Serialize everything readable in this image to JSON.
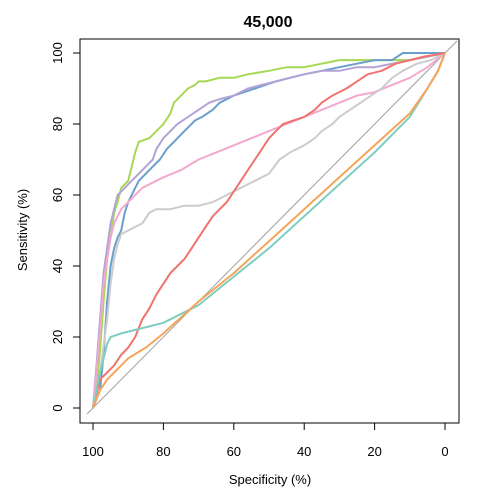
{
  "chart_data": {
    "type": "line",
    "title": "45,000",
    "xlabel": "Specificity (%)",
    "ylabel": "Sensitivity (%)",
    "xlim": [
      100,
      0
    ],
    "ylim": [
      0,
      100
    ],
    "x_reversed": true,
    "xticks": [
      100,
      80,
      60,
      40,
      20,
      0
    ],
    "yticks": [
      0,
      20,
      40,
      60,
      80,
      100
    ],
    "grid": false,
    "legend": "none",
    "diagonal_color": "#a0a0a0",
    "series": [
      {
        "color": "#a6d854",
        "points": [
          [
            100,
            0
          ],
          [
            99,
            6
          ],
          [
            98,
            16
          ],
          [
            97,
            30
          ],
          [
            96,
            42
          ],
          [
            95,
            48
          ],
          [
            94,
            55
          ],
          [
            93,
            58
          ],
          [
            92,
            62
          ],
          [
            90,
            64
          ],
          [
            89,
            68
          ],
          [
            88,
            72
          ],
          [
            87,
            75
          ],
          [
            84,
            76
          ],
          [
            82,
            78
          ],
          [
            80,
            80
          ],
          [
            78,
            83
          ],
          [
            77,
            86
          ],
          [
            75,
            88
          ],
          [
            73,
            90
          ],
          [
            71,
            91
          ],
          [
            70,
            92
          ],
          [
            68,
            92
          ],
          [
            64,
            93
          ],
          [
            60,
            93
          ],
          [
            56,
            94
          ],
          [
            50,
            95
          ],
          [
            45,
            96
          ],
          [
            40,
            96
          ],
          [
            30,
            98
          ],
          [
            20,
            98
          ],
          [
            10,
            98
          ],
          [
            5,
            99
          ],
          [
            0,
            100
          ]
        ]
      },
      {
        "color": "#6a9fcb",
        "points": [
          [
            100,
            0
          ],
          [
            98,
            5
          ],
          [
            97,
            15
          ],
          [
            96,
            30
          ],
          [
            95,
            40
          ],
          [
            94,
            45
          ],
          [
            93,
            48
          ],
          [
            92,
            50
          ],
          [
            91,
            55
          ],
          [
            90,
            58
          ],
          [
            88,
            62
          ],
          [
            87,
            64
          ],
          [
            85,
            66
          ],
          [
            83,
            68
          ],
          [
            81,
            70
          ],
          [
            79,
            73
          ],
          [
            77,
            75
          ],
          [
            75,
            77
          ],
          [
            73,
            79
          ],
          [
            71,
            81
          ],
          [
            69,
            82
          ],
          [
            66,
            84
          ],
          [
            64,
            86
          ],
          [
            60,
            88
          ],
          [
            57,
            89
          ],
          [
            54,
            90
          ],
          [
            51,
            91
          ],
          [
            48,
            92
          ],
          [
            44,
            93
          ],
          [
            40,
            94
          ],
          [
            35,
            95
          ],
          [
            30,
            96
          ],
          [
            25,
            97
          ],
          [
            20,
            98
          ],
          [
            15,
            98
          ],
          [
            12,
            100
          ],
          [
            0,
            100
          ]
        ]
      },
      {
        "color": "#b3a2d6",
        "points": [
          [
            100,
            0
          ],
          [
            99,
            12
          ],
          [
            98,
            25
          ],
          [
            97,
            38
          ],
          [
            96,
            45
          ],
          [
            95,
            52
          ],
          [
            94,
            56
          ],
          [
            93,
            60
          ],
          [
            91,
            62
          ],
          [
            89,
            64
          ],
          [
            87,
            66
          ],
          [
            85,
            68
          ],
          [
            83,
            70
          ],
          [
            82,
            73
          ],
          [
            80,
            76
          ],
          [
            78,
            78
          ],
          [
            76,
            80
          ],
          [
            73,
            82
          ],
          [
            70,
            84
          ],
          [
            67,
            86
          ],
          [
            64,
            87
          ],
          [
            60,
            88
          ],
          [
            56,
            90
          ],
          [
            52,
            91
          ],
          [
            48,
            92
          ],
          [
            44,
            93
          ],
          [
            40,
            94
          ],
          [
            35,
            95
          ],
          [
            30,
            95
          ],
          [
            25,
            96
          ],
          [
            20,
            96
          ],
          [
            15,
            97
          ],
          [
            10,
            98
          ],
          [
            5,
            99
          ],
          [
            0,
            100
          ]
        ]
      },
      {
        "color": "#f4a8cf",
        "points": [
          [
            100,
            0
          ],
          [
            99,
            10
          ],
          [
            98,
            22
          ],
          [
            97,
            35
          ],
          [
            96,
            42
          ],
          [
            95,
            48
          ],
          [
            94,
            52
          ],
          [
            92,
            56
          ],
          [
            90,
            58
          ],
          [
            88,
            60
          ],
          [
            86,
            62
          ],
          [
            84,
            63
          ],
          [
            80,
            65
          ],
          [
            75,
            67
          ],
          [
            70,
            70
          ],
          [
            65,
            72
          ],
          [
            60,
            74
          ],
          [
            55,
            76
          ],
          [
            50,
            78
          ],
          [
            45,
            80
          ],
          [
            40,
            82
          ],
          [
            35,
            84
          ],
          [
            30,
            86
          ],
          [
            25,
            88
          ],
          [
            20,
            89
          ],
          [
            15,
            91
          ],
          [
            10,
            93
          ],
          [
            5,
            96
          ],
          [
            0,
            100
          ]
        ]
      },
      {
        "color": "#cccccc",
        "points": [
          [
            100,
            0
          ],
          [
            98,
            10
          ],
          [
            96,
            25
          ],
          [
            95,
            35
          ],
          [
            94,
            42
          ],
          [
            93,
            46
          ],
          [
            92,
            49
          ],
          [
            90,
            50
          ],
          [
            88,
            51
          ],
          [
            86,
            52
          ],
          [
            84,
            55
          ],
          [
            82,
            56
          ],
          [
            78,
            56
          ],
          [
            74,
            57
          ],
          [
            70,
            57
          ],
          [
            66,
            58
          ],
          [
            62,
            60
          ],
          [
            58,
            62
          ],
          [
            54,
            64
          ],
          [
            50,
            66
          ],
          [
            47,
            70
          ],
          [
            44,
            72
          ],
          [
            40,
            74
          ],
          [
            37,
            76
          ],
          [
            35,
            78
          ],
          [
            32,
            80
          ],
          [
            30,
            82
          ],
          [
            27,
            84
          ],
          [
            24,
            86
          ],
          [
            21,
            88
          ],
          [
            18,
            90
          ],
          [
            15,
            93
          ],
          [
            12,
            95
          ],
          [
            8,
            97
          ],
          [
            4,
            98
          ],
          [
            0,
            100
          ]
        ]
      },
      {
        "color": "#f0736e",
        "points": [
          [
            100,
            0
          ],
          [
            99,
            4
          ],
          [
            98,
            8
          ],
          [
            96,
            10
          ],
          [
            94,
            12
          ],
          [
            92,
            15
          ],
          [
            90,
            17
          ],
          [
            88,
            20
          ],
          [
            86,
            25
          ],
          [
            84,
            28
          ],
          [
            82,
            32
          ],
          [
            80,
            35
          ],
          [
            78,
            38
          ],
          [
            76,
            40
          ],
          [
            74,
            42
          ],
          [
            72,
            45
          ],
          [
            70,
            48
          ],
          [
            68,
            51
          ],
          [
            66,
            54
          ],
          [
            64,
            56
          ],
          [
            62,
            58
          ],
          [
            60,
            61
          ],
          [
            58,
            64
          ],
          [
            56,
            67
          ],
          [
            54,
            70
          ],
          [
            52,
            73
          ],
          [
            50,
            76
          ],
          [
            48,
            78
          ],
          [
            46,
            80
          ],
          [
            43,
            81
          ],
          [
            40,
            82
          ],
          [
            37,
            84
          ],
          [
            35,
            86
          ],
          [
            32,
            88
          ],
          [
            28,
            90
          ],
          [
            25,
            92
          ],
          [
            22,
            94
          ],
          [
            18,
            95
          ],
          [
            14,
            97
          ],
          [
            10,
            98
          ],
          [
            6,
            99
          ],
          [
            0,
            100
          ]
        ]
      },
      {
        "color": "#7fcdc1",
        "points": [
          [
            100,
            0
          ],
          [
            99,
            5
          ],
          [
            98,
            10
          ],
          [
            97,
            14
          ],
          [
            96,
            18
          ],
          [
            95,
            20
          ],
          [
            92,
            21
          ],
          [
            88,
            22
          ],
          [
            84,
            23
          ],
          [
            80,
            24
          ],
          [
            76,
            26
          ],
          [
            70,
            29
          ],
          [
            60,
            37
          ],
          [
            50,
            45
          ],
          [
            40,
            54
          ],
          [
            30,
            63
          ],
          [
            20,
            72
          ],
          [
            10,
            82
          ],
          [
            5,
            90
          ],
          [
            2,
            95
          ],
          [
            0,
            100
          ]
        ]
      },
      {
        "color": "#f5a55a",
        "points": [
          [
            100,
            0
          ],
          [
            98,
            5
          ],
          [
            96,
            8
          ],
          [
            94,
            10
          ],
          [
            92,
            12
          ],
          [
            90,
            14
          ],
          [
            85,
            17
          ],
          [
            80,
            21
          ],
          [
            70,
            30
          ],
          [
            60,
            38
          ],
          [
            50,
            47
          ],
          [
            40,
            56
          ],
          [
            30,
            65
          ],
          [
            20,
            74
          ],
          [
            10,
            83
          ],
          [
            5,
            90
          ],
          [
            2,
            95
          ],
          [
            0,
            100
          ]
        ]
      }
    ]
  }
}
